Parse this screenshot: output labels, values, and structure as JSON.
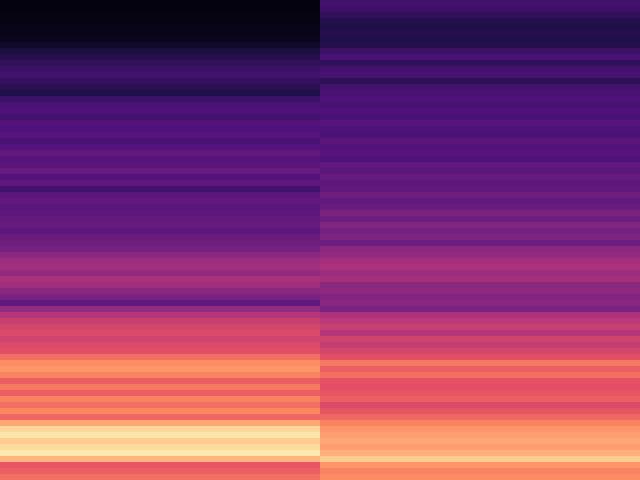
{
  "chart_data": {
    "type": "heatmap",
    "tick_labels": false,
    "zlim": [
      0,
      1
    ],
    "cells": [
      [
        0.02,
        0.22
      ],
      [
        0.02,
        0.21
      ],
      [
        0.03,
        0.18
      ],
      [
        0.03,
        0.15
      ],
      [
        0.04,
        0.14
      ],
      [
        0.04,
        0.15
      ],
      [
        0.05,
        0.14
      ],
      [
        0.08,
        0.15
      ],
      [
        0.12,
        0.2
      ],
      [
        0.15,
        0.24
      ],
      [
        0.18,
        0.18
      ],
      [
        0.2,
        0.22
      ],
      [
        0.22,
        0.23
      ],
      [
        0.19,
        0.17
      ],
      [
        0.16,
        0.22
      ],
      [
        0.14,
        0.24
      ],
      [
        0.2,
        0.25
      ],
      [
        0.24,
        0.23
      ],
      [
        0.25,
        0.25
      ],
      [
        0.22,
        0.24
      ],
      [
        0.26,
        0.27
      ],
      [
        0.25,
        0.25
      ],
      [
        0.27,
        0.24
      ],
      [
        0.24,
        0.28
      ],
      [
        0.26,
        0.26
      ],
      [
        0.3,
        0.27
      ],
      [
        0.27,
        0.25
      ],
      [
        0.28,
        0.3
      ],
      [
        0.31,
        0.28
      ],
      [
        0.26,
        0.31
      ],
      [
        0.29,
        0.29
      ],
      [
        0.22,
        0.3
      ],
      [
        0.28,
        0.33
      ],
      [
        0.3,
        0.3
      ],
      [
        0.28,
        0.32
      ],
      [
        0.29,
        0.36
      ],
      [
        0.3,
        0.33
      ],
      [
        0.31,
        0.38
      ],
      [
        0.29,
        0.35
      ],
      [
        0.32,
        0.37
      ],
      [
        0.33,
        0.33
      ],
      [
        0.35,
        0.4
      ],
      [
        0.4,
        0.42
      ],
      [
        0.44,
        0.46
      ],
      [
        0.46,
        0.48
      ],
      [
        0.42,
        0.44
      ],
      [
        0.47,
        0.46
      ],
      [
        0.45,
        0.4
      ],
      [
        0.4,
        0.41
      ],
      [
        0.36,
        0.38
      ],
      [
        0.3,
        0.4
      ],
      [
        0.42,
        0.36
      ],
      [
        0.5,
        0.48
      ],
      [
        0.55,
        0.52
      ],
      [
        0.58,
        0.55
      ],
      [
        0.6,
        0.5
      ],
      [
        0.57,
        0.57
      ],
      [
        0.6,
        0.54
      ],
      [
        0.62,
        0.58
      ],
      [
        0.7,
        0.62
      ],
      [
        0.76,
        0.72
      ],
      [
        0.78,
        0.66
      ],
      [
        0.74,
        0.7
      ],
      [
        0.66,
        0.63
      ],
      [
        0.72,
        0.62
      ],
      [
        0.66,
        0.64
      ],
      [
        0.74,
        0.66
      ],
      [
        0.7,
        0.6
      ],
      [
        0.75,
        0.64
      ],
      [
        0.68,
        0.68
      ],
      [
        0.82,
        0.74
      ],
      [
        0.92,
        0.78
      ],
      [
        0.95,
        0.8
      ],
      [
        0.9,
        0.82
      ],
      [
        0.93,
        0.8
      ],
      [
        0.96,
        0.84
      ],
      [
        0.85,
        0.9
      ],
      [
        0.64,
        0.78
      ],
      [
        0.66,
        0.74
      ],
      [
        0.7,
        0.76
      ]
    ]
  }
}
